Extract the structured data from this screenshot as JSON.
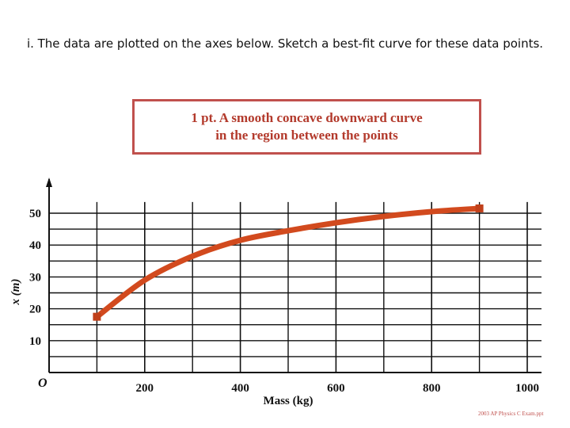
{
  "instruction": "i. The data are plotted on the axes below. Sketch a best-fit curve for these data points.",
  "callout": {
    "line1": "1 pt. A smooth concave downward curve",
    "line2": "in the region between the points"
  },
  "source": "2003 AP Physics C Exam.ppt",
  "chart_data": {
    "type": "line",
    "xlabel": "Mass (kg)",
    "ylabel": "x (m)",
    "origin_label": "O",
    "xlim": [
      0,
      1000
    ],
    "ylim": [
      0,
      55
    ],
    "x_ticks": [
      200,
      400,
      600,
      800,
      1000
    ],
    "y_ticks": [
      10,
      20,
      30,
      40,
      50
    ],
    "grid": true,
    "series": [
      {
        "color": "#d24a1e",
        "x": [
          100,
          200,
          300,
          400,
          500,
          600,
          700,
          800,
          900
        ],
        "y": [
          17.5,
          29,
          36.5,
          41.5,
          44.5,
          47,
          49,
          50.5,
          51.5
        ]
      }
    ],
    "points": [
      {
        "x": 100,
        "y": 17.5
      },
      {
        "x": 900,
        "y": 51.5
      }
    ]
  }
}
